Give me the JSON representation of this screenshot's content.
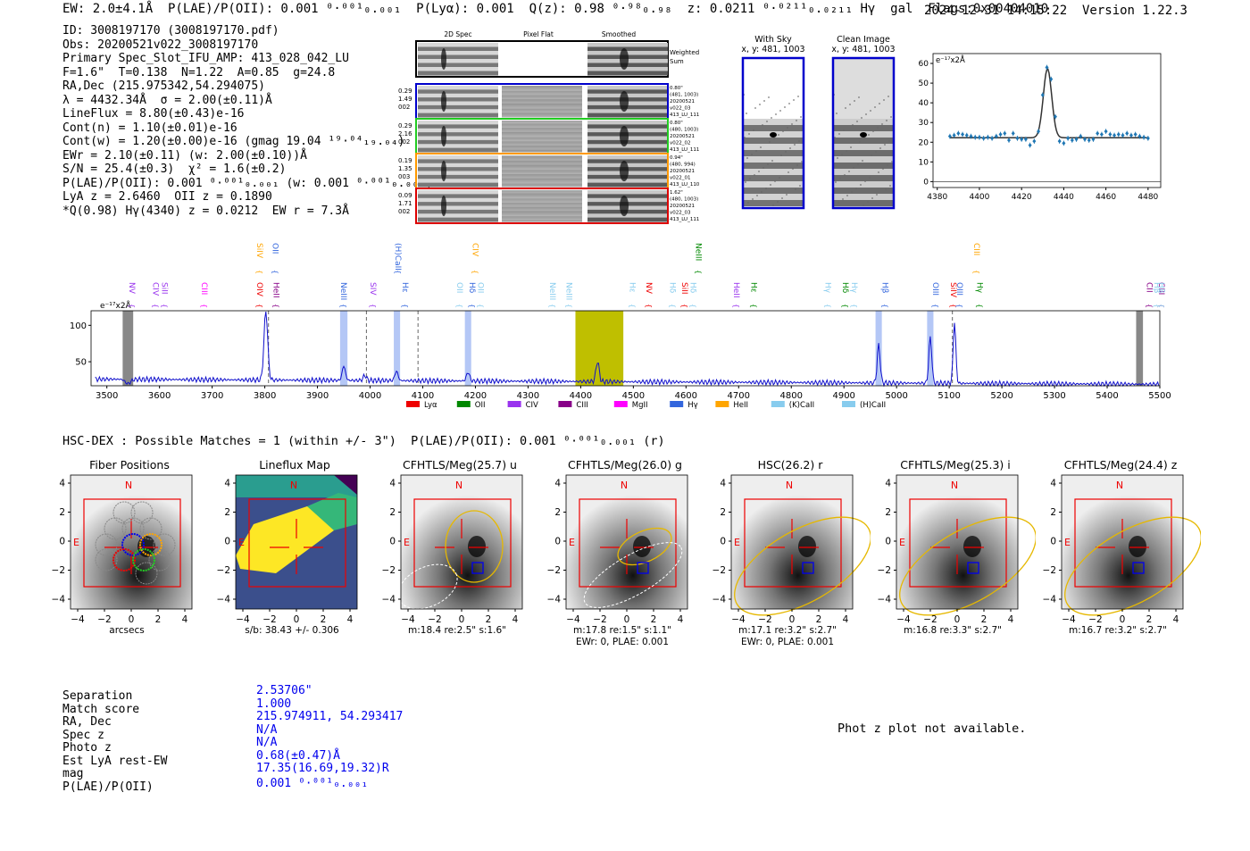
{
  "header": {
    "left": "EW: 2.0±4.1Å  P(LAE)/P(OII): 0.001 ⁰·⁰⁰¹₀.₀₀₁  P(Lyα): 0.001  Q(z): 0.98 ⁰·⁹⁸₀.₉₈  z: 0.0211 ⁰·⁰²¹¹₀.₀₂₁₁ Hγ  gal  Flags:0x00404010",
    "right": "2024-12-31 14:15:22  Version 1.22.3"
  },
  "info": {
    "lines": [
      "ID: 3008197170 (3008197170.pdf)",
      "Obs: 20200521v022_3008197170",
      "Primary Spec_Slot_IFU_AMP: 413_028_042_LU",
      "F=1.6\"  T=0.138  N=1.22  A=0.85  g=24.8",
      "RA,Dec (215.975342,54.294075)",
      "λ = 4432.34Å  σ = 2.00(±0.11)Å",
      "LineFlux = 8.80(±0.43)e-16",
      "Cont(n) = 1.10(±0.01)e-16",
      "Cont(w) = 1.20(±0.00)e-16 (gmag 19.04 ¹⁹·⁰⁴₁₉.₀₄)",
      "EWr = 2.10(±0.11) (w: 2.00(±0.10))Å",
      "S/N = 25.4(±0.3)  χ² = 1.6(±0.2)",
      "P(LAE)/P(OII): 0.001 ⁰·⁰⁰¹₀.₀₀₁ (w: 0.001 ⁰·⁰⁰¹₀.₀₀₁)",
      "LyA z = 2.6460  OII z = 0.1890",
      "*Q(0.98) Hγ(4340) z = 0.0212  EW r = 7.3Å"
    ]
  },
  "cutouts": {
    "headers": [
      "2D Spec",
      "Pixel Flat",
      "Smoothed"
    ],
    "weighted_label": "Weighted Sum",
    "rows": [
      {
        "left": [
          "0.29",
          "1.49",
          "002"
        ],
        "right": [
          "0.80\"",
          "(481, 1003)",
          "20200521",
          "v022_03",
          "413_LU_111"
        ],
        "color": "#0000cc"
      },
      {
        "left": [
          "0.29",
          "2.16",
          "002"
        ],
        "right": [
          "0.80\"",
          "(480, 1003)",
          "20200521",
          "v022_02",
          "413_LU_111"
        ],
        "color": "#22cc22"
      },
      {
        "left": [
          "0.19",
          "1.35",
          "003"
        ],
        "right": [
          "0.94\"",
          "(480, 994)",
          "20200521",
          "v022_01",
          "413_LU_110"
        ],
        "color": "#ff9900"
      },
      {
        "left": [
          "0.09",
          "1.71",
          "002"
        ],
        "right": [
          "1.62\"",
          "(480, 1003)",
          "20200521",
          "v022_03",
          "413_LU_111"
        ],
        "color": "#dd0000"
      }
    ],
    "with_sky": {
      "title": "With Sky",
      "coords": "x, y: 481, 1003"
    },
    "clean": {
      "title": "Clean Image",
      "coords": "x, y: 481, 1003"
    }
  },
  "fit_plot": {
    "unit": "e⁻¹⁷x2Å",
    "yticks": [
      0,
      10,
      20,
      30,
      40,
      50,
      60
    ],
    "xticks": [
      4380,
      4400,
      4420,
      4440,
      4460,
      4480
    ],
    "xlim": [
      4378,
      4486
    ],
    "ylim": [
      -3,
      65
    ],
    "points_x": [
      4386,
      4388,
      4390,
      4392,
      4394,
      4396,
      4398,
      4400,
      4402,
      4404,
      4406,
      4408,
      4410,
      4412,
      4414,
      4416,
      4418,
      4420,
      4422,
      4424,
      4426,
      4428,
      4430,
      4432,
      4434,
      4436,
      4438,
      4440,
      4442,
      4444,
      4446,
      4448,
      4450,
      4452,
      4454,
      4456,
      4458,
      4460,
      4462,
      4464,
      4466,
      4468,
      4470,
      4472,
      4474,
      4476,
      4478,
      4480
    ],
    "points_y": [
      23,
      23.5,
      24.5,
      24,
      23.5,
      23,
      22.5,
      22.5,
      22,
      22.5,
      22,
      23,
      24,
      24.5,
      21,
      24.5,
      22,
      21.5,
      21.5,
      18.5,
      20.5,
      25.5,
      44,
      58,
      52,
      33,
      20.5,
      19.5,
      22,
      21,
      21.5,
      23,
      21.5,
      21,
      21.5,
      24.5,
      24,
      25.5,
      24,
      23.5,
      24,
      23.5,
      24.5,
      23.5,
      24,
      23,
      22.5,
      22
    ],
    "fit_center": 4432.3,
    "fit_sigma": 2.0,
    "fit_peak": 35,
    "fit_base": 22.3
  },
  "spectrum": {
    "unit": "e⁻¹⁷x2Å",
    "xlim": [
      3470,
      5500
    ],
    "ylim": [
      17,
      120
    ],
    "xticks": [
      3500,
      3600,
      3700,
      3800,
      3900,
      4000,
      4100,
      4200,
      4300,
      4400,
      4500,
      4600,
      4700,
      4800,
      4900,
      5000,
      5100,
      5200,
      5300,
      5400,
      5500
    ],
    "yticks": [
      50,
      100
    ],
    "line_colors": {
      "Lya": "#ee0000",
      "OII": "#008800",
      "CIV": "#9933ee",
      "CIII": "#880088",
      "MgII": "#ff00ff",
      "Hg": "#3366dd",
      "HeII": "#ffa500",
      "KCaII": "#88ccee",
      "HCaII": "#88ccee"
    },
    "peaks": [
      {
        "x": 3540,
        "h": 0,
        "dip": 6
      },
      {
        "x": 3802,
        "h": 95,
        "w": 3.5
      },
      {
        "x": 3950,
        "h": 20,
        "w": 3
      },
      {
        "x": 3990,
        "h": 7,
        "w": 3
      },
      {
        "x": 4050,
        "h": 13,
        "w": 3
      },
      {
        "x": 4186,
        "h": 12,
        "w": 3
      },
      {
        "x": 4432,
        "h": 28,
        "w": 3
      },
      {
        "x": 4966,
        "h": 52,
        "w": 2.8
      },
      {
        "x": 5064,
        "h": 63,
        "w": 2.8
      },
      {
        "x": 5110,
        "h": 85,
        "w": 2.5
      }
    ],
    "blue_bands": [
      [
        3943,
        3957
      ],
      [
        4045,
        4057
      ],
      [
        4180,
        4192
      ],
      [
        4960,
        4972
      ],
      [
        5058,
        5070
      ]
    ],
    "dashed_lines": [
      3807,
      3993,
      4091,
      5106
    ],
    "yellow_band": [
      4390,
      4481
    ],
    "hatch_bands": [
      [
        3530,
        3550
      ],
      [
        5455,
        5468
      ]
    ],
    "labels": [
      {
        "t": "NV",
        "x": 3538,
        "c": "#9933ee",
        "row": 2
      },
      {
        "t": "CIV",
        "x": 3583,
        "c": "#9933ee",
        "row": 2
      },
      {
        "t": "SiII",
        "x": 3600,
        "c": "#9933ee",
        "row": 2
      },
      {
        "t": "CIII",
        "x": 3675,
        "c": "#ff00ff",
        "row": 2
      },
      {
        "t": "SiIV",
        "x": 3780,
        "c": "#ffa500",
        "row": 0
      },
      {
        "t": "OIV",
        "x": 3780,
        "c": "#ee0000",
        "row": 2
      },
      {
        "t": "OII",
        "x": 3810,
        "c": "#3366dd",
        "row": 0
      },
      {
        "t": "HeII",
        "x": 3812,
        "c": "#880088",
        "row": 2
      },
      {
        "t": "NeIII",
        "x": 3940,
        "c": "#3366dd",
        "row": 2
      },
      {
        "t": "SIV",
        "x": 3996,
        "c": "#9933ee",
        "row": 2
      },
      {
        "t": "(H)CaII",
        "x": 4043,
        "c": "#3366dd",
        "row": 0
      },
      {
        "t": "Hε",
        "x": 4057,
        "c": "#3366dd",
        "row": 2
      },
      {
        "t": "CIV",
        "x": 4190,
        "c": "#ffa500",
        "row": 0
      },
      {
        "t": "OII",
        "x": 4160,
        "c": "#88ccee",
        "row": 2
      },
      {
        "t": "Hδ",
        "x": 4184,
        "c": "#3366dd",
        "row": 2
      },
      {
        "t": "OII",
        "x": 4200,
        "c": "#88ccee",
        "row": 2
      },
      {
        "t": "NeIII",
        "x": 4337,
        "c": "#88ccee",
        "row": 2
      },
      {
        "t": "NeIII",
        "x": 4368,
        "c": "#88ccee",
        "row": 2
      },
      {
        "t": "Hε",
        "x": 4488,
        "c": "#88ccee",
        "row": 2
      },
      {
        "t": "NV",
        "x": 4520,
        "c": "#ee0000",
        "row": 2
      },
      {
        "t": "Hδ",
        "x": 4565,
        "c": "#88ccee",
        "row": 2
      },
      {
        "t": "SiII",
        "x": 4588,
        "c": "#ee0000",
        "row": 2
      },
      {
        "t": "Hδ",
        "x": 4604,
        "c": "#88ccee",
        "row": 2
      },
      {
        "t": "NeIII",
        "x": 4614,
        "c": "#008800",
        "row": 0
      },
      {
        "t": "HeII",
        "x": 4686,
        "c": "#9933ee",
        "row": 2
      },
      {
        "t": "Hε",
        "x": 4719,
        "c": "#008800",
        "row": 2
      },
      {
        "t": "Hγ",
        "x": 4860,
        "c": "#88ccee",
        "row": 2
      },
      {
        "t": "Hδ",
        "x": 4893,
        "c": "#008800",
        "row": 2
      },
      {
        "t": "Hγ",
        "x": 4910,
        "c": "#88ccee",
        "row": 2
      },
      {
        "t": "Hβ",
        "x": 4968,
        "c": "#3366dd",
        "row": 2
      },
      {
        "t": "OIII",
        "x": 5064,
        "c": "#3366dd",
        "row": 2
      },
      {
        "t": "SiIV",
        "x": 5098,
        "c": "#ee0000",
        "row": 2
      },
      {
        "t": "OIII",
        "x": 5110,
        "c": "#3366dd",
        "row": 2
      },
      {
        "t": "CIII",
        "x": 5142,
        "c": "#ffa500",
        "row": 0
      },
      {
        "t": "Hγ",
        "x": 5148,
        "c": "#008800",
        "row": 2
      },
      {
        "t": "CII",
        "x": 5470,
        "c": "#880088",
        "row": 2
      },
      {
        "t": "Hβ",
        "x": 5485,
        "c": "#88ccee",
        "row": 2
      },
      {
        "t": "CIII",
        "x": 5500,
        "c": "#880088",
        "row": 2
      },
      {
        "t": "Hβ",
        "x": 5515,
        "c": "#88ccee",
        "row": 2
      }
    ],
    "legend": [
      {
        "t": "Lyα",
        "c": "#ee0000"
      },
      {
        "t": "OII",
        "c": "#008800"
      },
      {
        "t": "CIV",
        "c": "#9933ee"
      },
      {
        "t": "CIII",
        "c": "#880088"
      },
      {
        "t": "MgII",
        "c": "#ff00ff"
      },
      {
        "t": "Hγ",
        "c": "#3366dd"
      },
      {
        "t": "HeII",
        "c": "#ffa500"
      },
      {
        "t": "(K)CaII",
        "c": "#88ccee"
      },
      {
        "t": "(H)CaII",
        "c": "#88ccee"
      }
    ]
  },
  "hsc": {
    "title": "HSC-DEX : Possible Matches = 1 (within +/- 3\")  P(LAE)/P(OII): 0.001 ⁰·⁰⁰¹₀.₀₀₁ (r)",
    "ticks": [
      "4",
      "2",
      "0",
      "−2",
      "−4"
    ],
    "xticks": [
      "−4",
      "−2",
      "0",
      "2",
      "4"
    ],
    "panels": [
      {
        "title": "Fiber Positions",
        "caption": "arcsecs",
        "type": "fiber"
      },
      {
        "title": "Lineflux Map",
        "caption": "s/b: 38.43 +/- 0.306",
        "type": "lineflux"
      },
      {
        "title": "CFHTLS/Meg(25.7) u",
        "caption": "m:18.4  re:2.5\"  s:1.6\"",
        "type": "img",
        "ell": "small"
      },
      {
        "title": "CFHTLS/Meg(26.0) g",
        "caption": "m:17.8  re:1.5\"  s:1.1\"\nEWr: 0, PLAE: 0.001",
        "type": "img",
        "ell": "tiny"
      },
      {
        "title": "HSC(26.2) r",
        "caption": "m:17.1  re:3.2\"  s:2.7\"\nEWr: 0, PLAE: 0.001",
        "type": "img",
        "ell": "big"
      },
      {
        "title": "CFHTLS/Meg(25.3) i",
        "caption": "m:16.8  re:3.3\"  s:2.7\"",
        "type": "img",
        "ell": "big"
      },
      {
        "title": "CFHTLS/Meg(24.4) z",
        "caption": "m:16.7  re:3.2\"  s:2.7\"",
        "type": "img",
        "ell": "big"
      }
    ],
    "north": "N",
    "east": "E"
  },
  "match": {
    "labels": [
      "Separation",
      "Match score",
      "RA, Dec",
      "Spec z",
      "Photo z",
      "Est LyA rest-EW",
      "mag",
      "P(LAE)/P(OII)"
    ],
    "values": [
      "2.53706\"",
      "1.000",
      "215.974911, 54.293417",
      "N/A",
      "N/A",
      "0.68(±0.47)Å",
      "17.35(16.69,19.32)R",
      "0.001 ⁰·⁰⁰¹₀.₀₀₁"
    ],
    "phot_z": "Phot z plot not available."
  }
}
